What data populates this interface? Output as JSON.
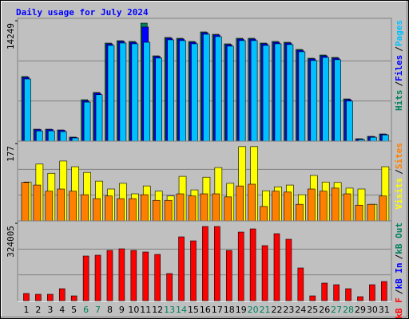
{
  "chart_data": [
    {
      "type": "bar",
      "title": "Daily usage for July 2024",
      "ylim": [
        0,
        14249
      ],
      "yticks": [
        14249
      ],
      "legend_separator": "/",
      "series": [
        {
          "name": "Hits",
          "color": "#00805c",
          "values": [
            7644,
            1415,
            1415,
            1321,
            472,
            4907,
            5756,
            11607,
            11890,
            11796,
            13966,
            10097,
            12268,
            12173,
            11796,
            12928,
            12645,
            11513,
            12173,
            12173,
            11607,
            11796,
            11701,
            10852,
            9814,
            10191,
            9908,
            5001,
            283,
            566,
            849
          ]
        },
        {
          "name": "Files",
          "color": "#0000ff",
          "values": [
            7550,
            1390,
            1390,
            1300,
            460,
            4800,
            5690,
            11510,
            11800,
            11700,
            13500,
            10010,
            12180,
            12080,
            11700,
            12830,
            12560,
            11420,
            12080,
            12080,
            11520,
            11700,
            11610,
            10760,
            9730,
            10100,
            9820,
            4920,
            270,
            550,
            830
          ]
        },
        {
          "name": "Pages",
          "color": "#00c0ff",
          "values": [
            7360,
            1210,
            1220,
            1130,
            380,
            4620,
            5500,
            11330,
            11610,
            11520,
            11700,
            9830,
            11990,
            11900,
            11520,
            12650,
            12370,
            11240,
            11900,
            11900,
            11330,
            11520,
            11430,
            10580,
            9540,
            9910,
            9640,
            4740,
            190,
            460,
            740
          ]
        }
      ]
    },
    {
      "type": "bar",
      "ylim": [
        0,
        177
      ],
      "yticks": [
        177
      ],
      "legend_separator": "/",
      "series": [
        {
          "name": "Visits",
          "color": "#ffff00",
          "values": [
            89,
            130,
            109,
            137,
            124,
            111,
            91,
            73,
            86,
            62,
            80,
            68,
            57,
            102,
            71,
            100,
            122,
            86,
            170,
            170,
            69,
            78,
            82,
            60,
            104,
            89,
            88,
            75,
            73,
            38,
            124
          ]
        },
        {
          "name": "Sites",
          "color": "#ff8000",
          "values": [
            88,
            82,
            68,
            73,
            68,
            60,
            51,
            57,
            51,
            51,
            60,
            47,
            47,
            62,
            57,
            62,
            62,
            55,
            80,
            84,
            33,
            68,
            66,
            38,
            73,
            68,
            75,
            62,
            36,
            38,
            57
          ]
        }
      ]
    },
    {
      "type": "bar",
      "ylim": [
        0,
        324005
      ],
      "yticks": [
        324005
      ],
      "legend_separator": "/",
      "series": [
        {
          "name": "kB F",
          "color": "#ff0000",
          "values": [
            30062,
            26722,
            26722,
            50104,
            20041,
            187055,
            190396,
            210437,
            217118,
            210437,
            203756,
            193736,
            113570,
            267221,
            250520,
            310643,
            310643,
            210437,
            287261,
            300623,
            230479,
            280581,
            257200,
            136952,
            20041,
            73486,
            66805,
            50104,
            16701,
            66805,
            80166
          ]
        }
      ],
      "extra_legend": [
        {
          "name": "kB In",
          "color": "#0000ff"
        },
        {
          "name": "kB Out",
          "color": "#00805c"
        }
      ],
      "categories": [
        "1",
        "2",
        "3",
        "4",
        "5",
        "6",
        "7",
        "8",
        "9",
        "10",
        "11",
        "12",
        "13",
        "14",
        "15",
        "16",
        "17",
        "18",
        "19",
        "20",
        "21",
        "22",
        "23",
        "24",
        "25",
        "26",
        "27",
        "28",
        "29",
        "30",
        "31"
      ],
      "category_colors": [
        "#000000",
        "#000000",
        "#000000",
        "#000000",
        "#000000",
        "#00805c",
        "#00805c",
        "#000000",
        "#000000",
        "#000000",
        "#000000",
        "#000000",
        "#00805c",
        "#00805c",
        "#000000",
        "#000000",
        "#000000",
        "#000000",
        "#000000",
        "#00805c",
        "#00805c",
        "#000000",
        "#000000",
        "#000000",
        "#000000",
        "#000000",
        "#00805c",
        "#00805c",
        "#000000",
        "#000000",
        "#000000"
      ]
    }
  ]
}
